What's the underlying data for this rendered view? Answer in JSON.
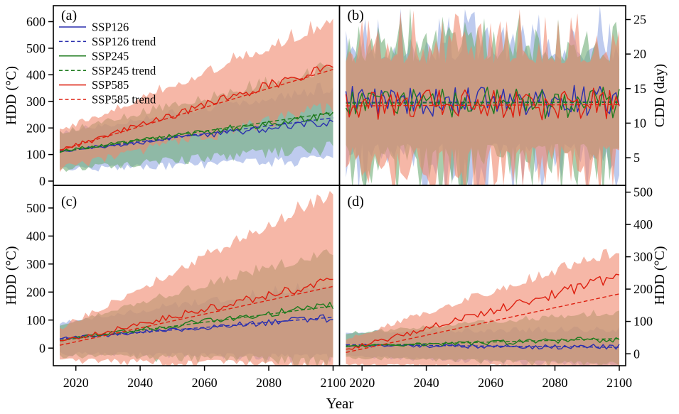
{
  "chart_data": {
    "type": "line",
    "xlabel": "Year",
    "x_range": [
      2015,
      2100
    ],
    "band_opacity": 0.6,
    "legend": {
      "position": "upper-left of panel a",
      "entries": [
        {
          "label": "SSP126",
          "color": "#2a2fae",
          "dash": false
        },
        {
          "label": "SSP126 trend",
          "color": "#2a2fae",
          "dash": true
        },
        {
          "label": "SSP245",
          "color": "#1e7b1e",
          "dash": false
        },
        {
          "label": "SSP245 trend",
          "color": "#1e7b1e",
          "dash": true
        },
        {
          "label": "SSP585",
          "color": "#de1f0f",
          "dash": false
        },
        {
          "label": "SSP585 trend",
          "color": "#de1f0f",
          "dash": true
        }
      ]
    },
    "panels": [
      {
        "id": "a",
        "label": "(a)",
        "ylabel": "HDD (°C)",
        "ytick_side": "left",
        "yticks": [
          0,
          100,
          200,
          300,
          400,
          500,
          600
        ],
        "ylim": [
          -16,
          660
        ],
        "xticks": [
          2020,
          2040,
          2060,
          2080,
          2100
        ],
        "xlim": [
          2013,
          2102
        ],
        "show_xtick_labels": false,
        "noise_grows": true,
        "series": [
          {
            "name": "ssp126",
            "color": "#2a2fae",
            "band_color": "#93a8e2",
            "line": [
              112,
              226
            ],
            "trend": [
              110,
              238
            ],
            "noise_amp": 12,
            "band_up": [
              65,
              30
            ],
            "band_lo": [
              58,
              80
            ],
            "band_noise": 26
          },
          {
            "name": "ssp245",
            "color": "#1e7b1e",
            "band_color": "#6fae77",
            "line": [
              112,
              250
            ],
            "trend": [
              110,
              258
            ],
            "noise_amp": 12,
            "band_up": [
              65,
              85
            ],
            "band_lo": [
              58,
              50
            ],
            "band_noise": 28
          },
          {
            "name": "ssp585",
            "color": "#de1f0f",
            "band_color": "#f0876c",
            "line": [
              116,
              435
            ],
            "trend": [
              116,
              420
            ],
            "noise_amp": 16,
            "band_up": [
              65,
              95
            ],
            "band_lo": [
              58,
              55
            ],
            "band_noise": 34
          }
        ]
      },
      {
        "id": "b",
        "label": "(b)",
        "ylabel": "CDD (day)",
        "ytick_side": "right",
        "yticks": [
          5,
          10,
          15,
          20,
          25
        ],
        "ylim": [
          1,
          27
        ],
        "xticks": [
          2020,
          2040,
          2060,
          2080,
          2100
        ],
        "xlim": [
          2013,
          2102
        ],
        "show_xtick_labels": false,
        "noise_grows": false,
        "series": [
          {
            "name": "ssp126",
            "color": "#2a2fae",
            "band_color": "#93a8e2",
            "line": [
              13.1,
              13.2
            ],
            "trend": [
              13.0,
              13.1
            ],
            "noise_amp": 2.3,
            "band_up": [
              6,
              0
            ],
            "band_lo": [
              6,
              0
            ],
            "band_noise": 5
          },
          {
            "name": "ssp245",
            "color": "#1e7b1e",
            "band_color": "#6fae77",
            "line": [
              12.9,
              13.0
            ],
            "trend": [
              12.9,
              13.0
            ],
            "noise_amp": 2.3,
            "band_up": [
              6,
              0
            ],
            "band_lo": [
              6,
              0
            ],
            "band_noise": 5
          },
          {
            "name": "ssp585",
            "color": "#de1f0f",
            "band_color": "#f0876c",
            "line": [
              12.5,
              12.8
            ],
            "trend": [
              12.5,
              12.7
            ],
            "noise_amp": 2.3,
            "band_up": [
              6,
              0
            ],
            "band_lo": [
              6,
              0
            ],
            "band_noise": 5
          }
        ]
      },
      {
        "id": "c",
        "label": "(c)",
        "ylabel": "HDD (°C)",
        "ytick_side": "left",
        "yticks": [
          0,
          100,
          200,
          300,
          400,
          500
        ],
        "ylim": [
          -63,
          581
        ],
        "xticks": [
          2020,
          2040,
          2060,
          2080,
          2100
        ],
        "xlim": [
          2013,
          2102
        ],
        "show_xtick_labels": true,
        "noise_grows": true,
        "series": [
          {
            "name": "ssp126",
            "color": "#2a2fae",
            "band_color": "#93a8e2",
            "line": [
              34,
              108
            ],
            "trend": [
              33,
              110
            ],
            "noise_amp": 10,
            "band_up": [
              52,
              55
            ],
            "band_lo": [
              46,
              85
            ],
            "band_noise": 22
          },
          {
            "name": "ssp245",
            "color": "#1e7b1e",
            "band_color": "#6fae77",
            "line": [
              30,
              152
            ],
            "trend": [
              27,
              150
            ],
            "noise_amp": 11,
            "band_up": [
              52,
              130
            ],
            "band_lo": [
              46,
              135
            ],
            "band_noise": 25
          },
          {
            "name": "ssp585",
            "color": "#de1f0f",
            "band_color": "#f0876c",
            "line": [
              24,
              240
            ],
            "trend": [
              10,
              220
            ],
            "noise_amp": 14,
            "band_up": [
              52,
              260
            ],
            "band_lo": [
              46,
              220
            ],
            "band_noise": 30
          }
        ]
      },
      {
        "id": "d",
        "label": "(d)",
        "ylabel": "HDD (°C)",
        "ytick_side": "right",
        "yticks": [
          0,
          100,
          200,
          300,
          400,
          500
        ],
        "ylim": [
          -37,
          521
        ],
        "xticks": [
          2020,
          2040,
          2060,
          2080,
          2100
        ],
        "xlim": [
          2013,
          2102
        ],
        "show_xtick_labels": true,
        "noise_grows": true,
        "series": [
          {
            "name": "ssp126",
            "color": "#2a2fae",
            "band_color": "#93a8e2",
            "line": [
              26,
              20
            ],
            "trend": [
              28,
              20
            ],
            "noise_amp": 7,
            "band_up": [
              36,
              10
            ],
            "band_lo": [
              32,
              18
            ],
            "band_noise": 12
          },
          {
            "name": "ssp245",
            "color": "#1e7b1e",
            "band_color": "#6fae77",
            "line": [
              23,
              45
            ],
            "trend": [
              24,
              47
            ],
            "noise_amp": 7,
            "band_up": [
              36,
              38
            ],
            "band_lo": [
              32,
              40
            ],
            "band_noise": 12
          },
          {
            "name": "ssp585",
            "color": "#de1f0f",
            "band_color": "#f0876c",
            "line": [
              12,
              238
            ],
            "trend": [
              4,
              185
            ],
            "noise_amp": 13,
            "band_up": [
              38,
              80
            ],
            "band_lo": [
              34,
              185
            ],
            "band_noise": 20
          }
        ]
      }
    ]
  }
}
